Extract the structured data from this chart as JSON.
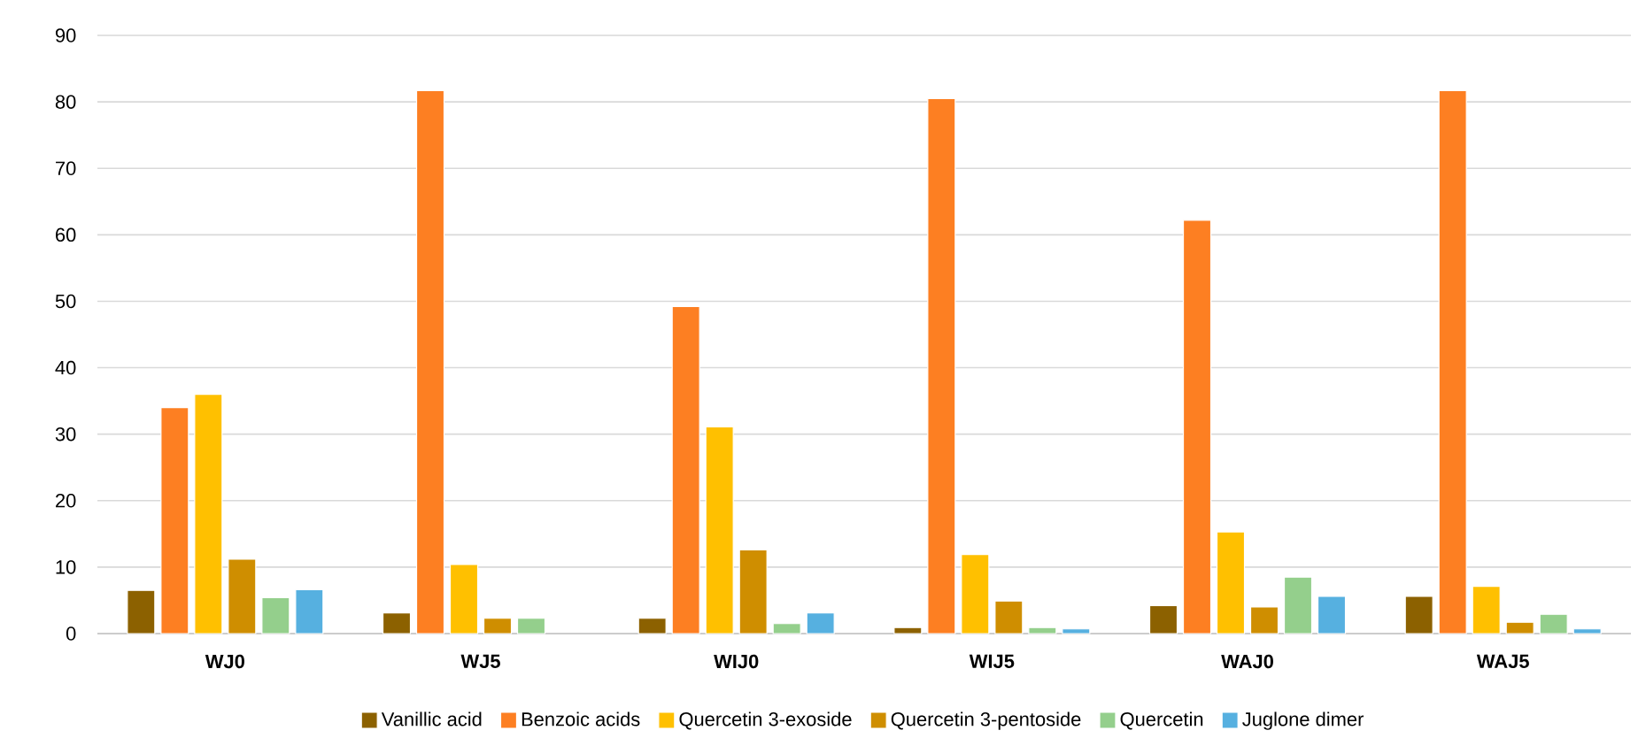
{
  "chart_data": {
    "type": "bar",
    "categories": [
      "WJ0",
      "WJ5",
      "WIJ0",
      "WIJ5",
      "WAJ0",
      "WAJ5"
    ],
    "series": [
      {
        "name": "Vanillic acid",
        "color": "#8c6100",
        "values": [
          6.5,
          3.1,
          2.3,
          0.9,
          4.2,
          5.6
        ]
      },
      {
        "name": "Benzoic acids",
        "color": "#fd7f22",
        "values": [
          34,
          81.7,
          49.2,
          80.5,
          62.2,
          81.7
        ]
      },
      {
        "name": "Quercetin 3-exoside",
        "color": "#ffc000",
        "values": [
          36,
          10.4,
          31.1,
          11.9,
          15.3,
          7.1
        ]
      },
      {
        "name": "Quercetin 3-pentoside",
        "color": "#cf8e00",
        "values": [
          11.2,
          2.3,
          12.6,
          4.9,
          4,
          1.7
        ]
      },
      {
        "name": "Quercetin",
        "color": "#94cf8c",
        "values": [
          5.4,
          2.3,
          1.5,
          0.9,
          8.5,
          2.9
        ]
      },
      {
        "name": "Juglone dimer",
        "color": "#56b0e0",
        "values": [
          6.6,
          null,
          3.1,
          0.7,
          5.6,
          0.7
        ]
      }
    ],
    "ylim": [
      0,
      90
    ],
    "yticks": [
      0,
      10,
      20,
      30,
      40,
      50,
      60,
      70,
      80,
      90
    ],
    "grid": "y",
    "legend": "bottom"
  }
}
